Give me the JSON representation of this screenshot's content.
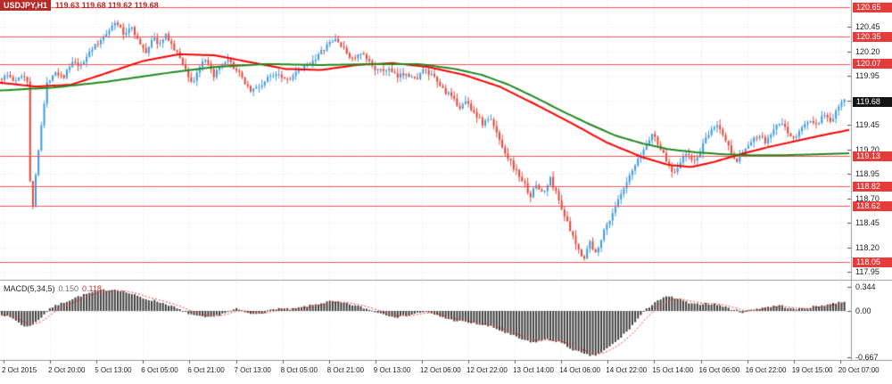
{
  "header": {
    "symbol": "USDJPY,H1",
    "ohlc": "119.63 119.68 119.62 119.68"
  },
  "indicator": {
    "name": "MACD(5,34,5)",
    "main_value": "0.150",
    "signal_value": "0.118"
  },
  "colors": {
    "bull": "#3f9be0",
    "bear": "#e6463a",
    "ma_fast": "#ff0000",
    "ma_slow": "#1f8a1f",
    "level": "#f25555",
    "level_tag": "#e63b3b",
    "current_tag": "#141414",
    "macd_bar": "#3f3f3f",
    "macd_signal": "#ff3030",
    "grid": "#e4e4e4",
    "separator": "#9b9b9b",
    "axis_text": "#1c1c1c"
  },
  "chart_data": {
    "type": "candlestick",
    "title": "USDJPY H1 candlestick chart with two moving averages, horizontal support/resistance levels and MACD(5,34,5)",
    "symbol": "USDJPY",
    "timeframe": "H1",
    "price_range": [
      117.88,
      120.72
    ],
    "price_axis_ticks": [
      120.45,
      120.2,
      119.95,
      119.7,
      119.45,
      119.2,
      118.95,
      118.7,
      118.45,
      118.2,
      117.95
    ],
    "levels": [
      120.65,
      120.35,
      120.07,
      119.13,
      118.82,
      118.62,
      118.05
    ],
    "last_price": 119.68,
    "time_labels": [
      "2 Oct 2015",
      "2 Oct 20:00",
      "5 Oct 13:00",
      "6 Oct 05:00",
      "6 Oct 21:00",
      "7 Oct 13:00",
      "8 Oct 05:00",
      "8 Oct 21:00",
      "9 Oct 13:00",
      "12 Oct 06:00",
      "12 Oct 22:00",
      "13 Oct 14:00",
      "14 Oct 06:00",
      "14 Oct 22:00",
      "15 Oct 14:00",
      "16 Oct 06:00",
      "16 Oct 22:00",
      "19 Oct 15:00",
      "20 Oct 07:00"
    ],
    "close_path": [
      [
        0,
        119.92
      ],
      [
        8,
        119.96
      ],
      [
        16,
        119.88
      ],
      [
        24,
        119.97
      ],
      [
        30,
        119.9
      ],
      [
        33,
        118.78
      ],
      [
        36,
        118.6
      ],
      [
        40,
        119.05
      ],
      [
        46,
        119.5
      ],
      [
        52,
        119.88
      ],
      [
        60,
        120.0
      ],
      [
        70,
        119.94
      ],
      [
        80,
        120.08
      ],
      [
        90,
        120.04
      ],
      [
        100,
        120.22
      ],
      [
        110,
        120.28
      ],
      [
        120,
        120.42
      ],
      [
        130,
        120.5
      ],
      [
        138,
        120.36
      ],
      [
        146,
        120.47
      ],
      [
        154,
        120.3
      ],
      [
        162,
        120.18
      ],
      [
        170,
        120.34
      ],
      [
        178,
        120.27
      ],
      [
        186,
        120.37
      ],
      [
        194,
        120.22
      ],
      [
        202,
        120.12
      ],
      [
        209,
        119.97
      ],
      [
        215,
        119.86
      ],
      [
        222,
        120.04
      ],
      [
        230,
        120.1
      ],
      [
        238,
        119.95
      ],
      [
        246,
        120.03
      ],
      [
        254,
        120.1
      ],
      [
        262,
        120.03
      ],
      [
        270,
        119.93
      ],
      [
        280,
        119.8
      ],
      [
        290,
        119.84
      ],
      [
        300,
        119.93
      ],
      [
        310,
        119.99
      ],
      [
        320,
        119.91
      ],
      [
        332,
        119.98
      ],
      [
        344,
        120.06
      ],
      [
        356,
        120.16
      ],
      [
        368,
        120.28
      ],
      [
        376,
        120.33
      ],
      [
        384,
        120.22
      ],
      [
        394,
        120.12
      ],
      [
        404,
        120.17
      ],
      [
        414,
        120.08
      ],
      [
        424,
        119.99
      ],
      [
        434,
        120.02
      ],
      [
        444,
        119.93
      ],
      [
        454,
        119.99
      ],
      [
        464,
        119.91
      ],
      [
        474,
        120.01
      ],
      [
        484,
        119.94
      ],
      [
        494,
        119.83
      ],
      [
        504,
        119.74
      ],
      [
        514,
        119.63
      ],
      [
        522,
        119.69
      ],
      [
        532,
        119.56
      ],
      [
        540,
        119.46
      ],
      [
        548,
        119.52
      ],
      [
        556,
        119.36
      ],
      [
        566,
        119.16
      ],
      [
        576,
        119.0
      ],
      [
        586,
        118.86
      ],
      [
        594,
        118.72
      ],
      [
        600,
        118.84
      ],
      [
        608,
        118.74
      ],
      [
        616,
        118.9
      ],
      [
        624,
        118.72
      ],
      [
        632,
        118.52
      ],
      [
        640,
        118.32
      ],
      [
        648,
        118.16
      ],
      [
        654,
        118.1
      ],
      [
        660,
        118.26
      ],
      [
        666,
        118.12
      ],
      [
        674,
        118.32
      ],
      [
        682,
        118.48
      ],
      [
        690,
        118.64
      ],
      [
        698,
        118.78
      ],
      [
        706,
        118.94
      ],
      [
        714,
        119.08
      ],
      [
        722,
        119.22
      ],
      [
        730,
        119.36
      ],
      [
        738,
        119.24
      ],
      [
        746,
        119.08
      ],
      [
        754,
        118.96
      ],
      [
        762,
        119.08
      ],
      [
        770,
        119.16
      ],
      [
        778,
        119.06
      ],
      [
        786,
        119.22
      ],
      [
        794,
        119.36
      ],
      [
        802,
        119.46
      ],
      [
        810,
        119.34
      ],
      [
        818,
        119.18
      ],
      [
        826,
        119.08
      ],
      [
        834,
        119.2
      ],
      [
        842,
        119.28
      ],
      [
        850,
        119.34
      ],
      [
        858,
        119.26
      ],
      [
        866,
        119.4
      ],
      [
        874,
        119.47
      ],
      [
        882,
        119.38
      ],
      [
        890,
        119.3
      ],
      [
        898,
        119.42
      ],
      [
        906,
        119.5
      ],
      [
        914,
        119.44
      ],
      [
        922,
        119.54
      ],
      [
        930,
        119.48
      ],
      [
        938,
        119.6
      ],
      [
        944,
        119.74
      ],
      [
        950,
        119.68
      ]
    ],
    "ma_fast_path": [
      [
        0,
        119.88
      ],
      [
        40,
        119.84
      ],
      [
        80,
        119.86
      ],
      [
        120,
        119.98
      ],
      [
        160,
        120.1
      ],
      [
        200,
        120.17
      ],
      [
        240,
        120.16
      ],
      [
        280,
        120.09
      ],
      [
        320,
        120.02
      ],
      [
        360,
        120.01
      ],
      [
        400,
        120.06
      ],
      [
        440,
        120.08
      ],
      [
        480,
        120.04
      ],
      [
        520,
        119.96
      ],
      [
        560,
        119.84
      ],
      [
        600,
        119.66
      ],
      [
        640,
        119.47
      ],
      [
        680,
        119.27
      ],
      [
        720,
        119.12
      ],
      [
        750,
        119.04
      ],
      [
        775,
        119.02
      ],
      [
        800,
        119.07
      ],
      [
        830,
        119.15
      ],
      [
        860,
        119.22
      ],
      [
        890,
        119.28
      ],
      [
        920,
        119.34
      ],
      [
        953,
        119.4
      ]
    ],
    "ma_slow_path": [
      [
        0,
        119.8
      ],
      [
        60,
        119.83
      ],
      [
        120,
        119.89
      ],
      [
        180,
        119.97
      ],
      [
        240,
        120.04
      ],
      [
        300,
        120.07
      ],
      [
        360,
        120.06
      ],
      [
        420,
        120.07
      ],
      [
        470,
        120.07
      ],
      [
        510,
        120.02
      ],
      [
        540,
        119.96
      ],
      [
        570,
        119.86
      ],
      [
        600,
        119.73
      ],
      [
        630,
        119.59
      ],
      [
        660,
        119.46
      ],
      [
        690,
        119.34
      ],
      [
        720,
        119.26
      ],
      [
        750,
        119.2
      ],
      [
        780,
        119.17
      ],
      [
        810,
        119.15
      ],
      [
        840,
        119.14
      ],
      [
        880,
        119.14
      ],
      [
        920,
        119.15
      ],
      [
        953,
        119.16
      ]
    ],
    "macd": {
      "range": [
        -0.667,
        0.344
      ],
      "axis_ticks": [
        {
          "v": 0.344,
          "t": "0.344"
        },
        {
          "v": 0,
          "t": "0.00"
        },
        {
          "v": -0.667,
          "t": "-0.667"
        }
      ],
      "path": [
        [
          0,
          -0.04
        ],
        [
          15,
          -0.12
        ],
        [
          28,
          -0.24
        ],
        [
          40,
          -0.16
        ],
        [
          55,
          0.04
        ],
        [
          70,
          0.12
        ],
        [
          85,
          0.2
        ],
        [
          100,
          0.26
        ],
        [
          115,
          0.3
        ],
        [
          130,
          0.31
        ],
        [
          145,
          0.25
        ],
        [
          160,
          0.18
        ],
        [
          175,
          0.14
        ],
        [
          190,
          0.08
        ],
        [
          205,
          -0.01
        ],
        [
          220,
          -0.08
        ],
        [
          235,
          -0.1
        ],
        [
          250,
          -0.03
        ],
        [
          265,
          0.03
        ],
        [
          280,
          -0.05
        ],
        [
          295,
          -0.02
        ],
        [
          310,
          0.04
        ],
        [
          325,
          0.02
        ],
        [
          340,
          0.06
        ],
        [
          355,
          0.1
        ],
        [
          370,
          0.14
        ],
        [
          385,
          0.11
        ],
        [
          400,
          0.07
        ],
        [
          415,
          0.01
        ],
        [
          430,
          -0.05
        ],
        [
          445,
          -0.09
        ],
        [
          460,
          -0.05
        ],
        [
          475,
          -0.01
        ],
        [
          490,
          -0.07
        ],
        [
          505,
          -0.13
        ],
        [
          520,
          -0.16
        ],
        [
          535,
          -0.19
        ],
        [
          550,
          -0.23
        ],
        [
          565,
          -0.31
        ],
        [
          580,
          -0.39
        ],
        [
          595,
          -0.46
        ],
        [
          610,
          -0.41
        ],
        [
          625,
          -0.44
        ],
        [
          640,
          -0.55
        ],
        [
          655,
          -0.63
        ],
        [
          665,
          -0.65
        ],
        [
          678,
          -0.56
        ],
        [
          692,
          -0.42
        ],
        [
          706,
          -0.24
        ],
        [
          720,
          -0.02
        ],
        [
          734,
          0.14
        ],
        [
          748,
          0.21
        ],
        [
          762,
          0.16
        ],
        [
          776,
          0.09
        ],
        [
          790,
          0.11
        ],
        [
          804,
          0.09
        ],
        [
          818,
          0.03
        ],
        [
          832,
          -0.02
        ],
        [
          846,
          0.03
        ],
        [
          860,
          0.06
        ],
        [
          874,
          0.08
        ],
        [
          888,
          0.02
        ],
        [
          902,
          0.04
        ],
        [
          916,
          0.07
        ],
        [
          930,
          0.1
        ],
        [
          942,
          0.13
        ],
        [
          950,
          0.15
        ]
      ]
    }
  }
}
